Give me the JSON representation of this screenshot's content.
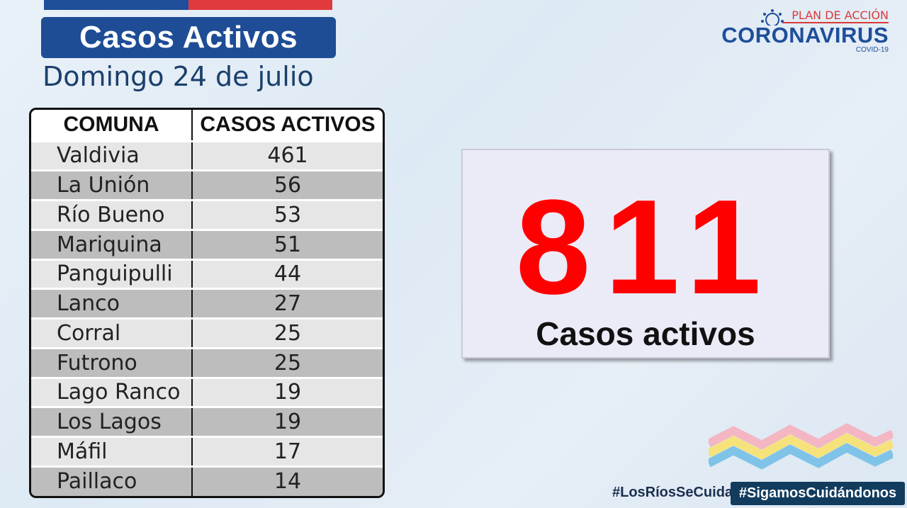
{
  "header": {
    "title": "Casos Activos",
    "date": "Domingo 24 de julio"
  },
  "table": {
    "headers": [
      "COMUNA",
      "CASOS ACTIVOS"
    ],
    "rows": [
      {
        "comuna": "Valdivia",
        "casos": "461"
      },
      {
        "comuna": "La Unión",
        "casos": "56"
      },
      {
        "comuna": "Río Bueno",
        "casos": "53"
      },
      {
        "comuna": "Mariquina",
        "casos": "51"
      },
      {
        "comuna": "Panguipulli",
        "casos": "44"
      },
      {
        "comuna": "Lanco",
        "casos": "27"
      },
      {
        "comuna": "Corral",
        "casos": "25"
      },
      {
        "comuna": "Futrono",
        "casos": "25"
      },
      {
        "comuna": "Lago Ranco",
        "casos": "19"
      },
      {
        "comuna": "Los Lagos",
        "casos": "19"
      },
      {
        "comuna": "Máfil",
        "casos": "17"
      },
      {
        "comuna": "Paillaco",
        "casos": "14"
      }
    ]
  },
  "total": {
    "number": "811",
    "label": "Casos activos"
  },
  "logo": {
    "plan": "PLAN DE ACCIÓN",
    "name": "CORONAVIRUS",
    "sub": "COVID-19",
    "icon": "virus-icon"
  },
  "hashtags": {
    "primary": "#LosRíosSeCuida",
    "secondary": "#SigamosCuidándonos"
  },
  "colors": {
    "brand_blue": "#1e4d96",
    "accent_red": "#e03a3e",
    "total_red": "#ff0000"
  }
}
